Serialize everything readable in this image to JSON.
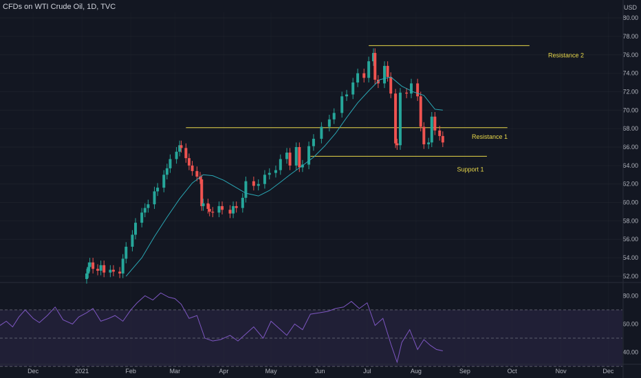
{
  "header": {
    "title": "CFDs on WTI Crude Oil, 1D, TVC",
    "currency": "USD"
  },
  "colors": {
    "background": "#131722",
    "up": "#26a69a",
    "down": "#ef5350",
    "ma": "#2aa8b5",
    "level": "#e9d84a",
    "rsi": "#7e57c2",
    "grid": "#363a45",
    "text": "#b2b5be"
  },
  "annotations": [
    {
      "label": "Resistance 2",
      "price": 77.0,
      "from": "2021-07-02",
      "to": "2021-10-12"
    },
    {
      "label": "Resistance 1",
      "price": 68.1,
      "from": "2021-03-08",
      "to": "2021-09-28"
    },
    {
      "label": "Support 1",
      "price": 65.0,
      "from": "2021-05-26",
      "to": "2021-09-15"
    }
  ],
  "chart_data": [
    {
      "type": "candlestick",
      "title": "CFDs on WTI Crude Oil, 1D, TVC",
      "y_unit": "USD",
      "y_ticks": [
        52,
        54,
        56,
        58,
        60,
        62,
        64,
        66,
        68,
        70,
        72,
        74,
        76,
        78,
        80
      ],
      "x_ticks": [
        "Dec",
        "2021",
        "Feb",
        "Mar",
        "Apr",
        "May",
        "Jun",
        "Jul",
        "Aug",
        "Sep",
        "Oct",
        "Nov",
        "Dec"
      ],
      "x_tick_dates": [
        "2020-12-01",
        "2021-01-01",
        "2021-02-01",
        "2021-03-01",
        "2021-04-01",
        "2021-05-01",
        "2021-06-01",
        "2021-07-01",
        "2021-08-01",
        "2021-09-01",
        "2021-10-01",
        "2021-11-01",
        "2021-12-01"
      ],
      "x_range": [
        "2020-11-10",
        "2021-12-10"
      ],
      "ylim": [
        51.4,
        80.6
      ],
      "series": [
        {
          "name": "Close",
          "dates": [
            "2021-01-04",
            "2021-01-05",
            "2021-01-06",
            "2021-01-08",
            "2021-01-11",
            "2021-01-13",
            "2021-01-15",
            "2021-01-19",
            "2021-01-21",
            "2021-01-25",
            "2021-01-27",
            "2021-01-29",
            "2021-02-02",
            "2021-02-04",
            "2021-02-08",
            "2021-02-10",
            "2021-02-12",
            "2021-02-16",
            "2021-02-18",
            "2021-02-22",
            "2021-02-24",
            "2021-02-26",
            "2021-03-02",
            "2021-03-04",
            "2021-03-05",
            "2021-03-08",
            "2021-03-10",
            "2021-03-12",
            "2021-03-15",
            "2021-03-17",
            "2021-03-18",
            "2021-03-19",
            "2021-03-22",
            "2021-03-23",
            "2021-03-25",
            "2021-03-29",
            "2021-03-31",
            "2021-04-05",
            "2021-04-07",
            "2021-04-09",
            "2021-04-13",
            "2021-04-15",
            "2021-04-20",
            "2021-04-23",
            "2021-04-27",
            "2021-04-30",
            "2021-05-04",
            "2021-05-07",
            "2021-05-11",
            "2021-05-13",
            "2021-05-17",
            "2021-05-19",
            "2021-05-21",
            "2021-05-25",
            "2021-05-28",
            "2021-06-02",
            "2021-06-07",
            "2021-06-10",
            "2021-06-15",
            "2021-06-18",
            "2021-06-22",
            "2021-06-25",
            "2021-06-29",
            "2021-07-02",
            "2021-07-05",
            "2021-07-06",
            "2021-07-08",
            "2021-07-12",
            "2021-07-14",
            "2021-07-16",
            "2021-07-19",
            "2021-07-20",
            "2021-07-22",
            "2021-07-26",
            "2021-07-29",
            "2021-08-02",
            "2021-08-04",
            "2021-08-06",
            "2021-08-09",
            "2021-08-11",
            "2021-08-13",
            "2021-08-16",
            "2021-08-18"
          ],
          "values": [
            52.3,
            53.0,
            53.5,
            52.8,
            52.6,
            53.2,
            52.4,
            52.7,
            52.5,
            52.3,
            53.9,
            55.2,
            56.5,
            57.8,
            58.9,
            59.4,
            59.8,
            61.2,
            61.6,
            63.0,
            63.7,
            64.7,
            65.5,
            66.2,
            65.9,
            64.8,
            64.0,
            63.4,
            62.8,
            62.5,
            59.6,
            59.9,
            59.3,
            59.0,
            58.9,
            59.6,
            59.2,
            58.8,
            59.6,
            59.4,
            60.5,
            62.3,
            61.8,
            62.0,
            63.0,
            63.2,
            63.5,
            64.7,
            65.4,
            64.0,
            66.0,
            63.8,
            64.1,
            66.1,
            66.9,
            68.2,
            69.0,
            69.7,
            71.5,
            71.7,
            73.0,
            74.0,
            73.5,
            75.3,
            76.2,
            73.3,
            72.9,
            74.8,
            73.6,
            71.8,
            66.4,
            66.2,
            71.9,
            71.8,
            72.9,
            71.5,
            68.2,
            66.3,
            66.5,
            69.3,
            67.8,
            67.2,
            66.5
          ]
        },
        {
          "name": "MA",
          "dates": [
            "2021-01-29",
            "2021-02-08",
            "2021-02-16",
            "2021-02-24",
            "2021-03-04",
            "2021-03-12",
            "2021-03-19",
            "2021-03-25",
            "2021-04-01",
            "2021-04-09",
            "2021-04-15",
            "2021-04-23",
            "2021-04-30",
            "2021-05-07",
            "2021-05-13",
            "2021-05-21",
            "2021-05-28",
            "2021-06-04",
            "2021-06-11",
            "2021-06-18",
            "2021-06-25",
            "2021-07-02",
            "2021-07-09",
            "2021-07-16",
            "2021-07-23",
            "2021-07-30",
            "2021-08-06",
            "2021-08-13",
            "2021-08-18"
          ],
          "values": [
            52.0,
            54.0,
            56.3,
            58.4,
            60.4,
            62.1,
            63.0,
            62.9,
            62.4,
            61.6,
            61.0,
            60.7,
            61.3,
            62.2,
            63.0,
            64.0,
            64.9,
            66.1,
            67.5,
            69.2,
            70.8,
            72.1,
            73.3,
            73.6,
            72.6,
            72.0,
            71.6,
            70.1,
            70.0
          ]
        }
      ]
    },
    {
      "type": "line",
      "title": "",
      "y_ticks": [
        40,
        60,
        80
      ],
      "ylim": [
        33,
        86
      ],
      "bands": [
        70,
        50,
        30
      ],
      "series": [
        {
          "name": "RSI",
          "dates": [
            "2020-11-10",
            "2020-11-14",
            "2020-11-18",
            "2020-11-22",
            "2020-11-26",
            "2020-12-01",
            "2020-12-05",
            "2020-12-10",
            "2020-12-15",
            "2020-12-20",
            "2020-12-26",
            "2020-12-30",
            "2021-01-04",
            "2021-01-08",
            "2021-01-13",
            "2021-01-18",
            "2021-01-22",
            "2021-01-27",
            "2021-02-01",
            "2021-02-05",
            "2021-02-10",
            "2021-02-15",
            "2021-02-20",
            "2021-02-25",
            "2021-03-01",
            "2021-03-05",
            "2021-03-10",
            "2021-03-15",
            "2021-03-20",
            "2021-03-25",
            "2021-03-30",
            "2021-04-05",
            "2021-04-10",
            "2021-04-15",
            "2021-04-20",
            "2021-04-26",
            "2021-05-01",
            "2021-05-06",
            "2021-05-11",
            "2021-05-16",
            "2021-05-21",
            "2021-05-26",
            "2021-06-01",
            "2021-06-06",
            "2021-06-11",
            "2021-06-16",
            "2021-06-21",
            "2021-06-26",
            "2021-07-01",
            "2021-07-06",
            "2021-07-11",
            "2021-07-16",
            "2021-07-20",
            "2021-07-23",
            "2021-07-28",
            "2021-08-02",
            "2021-08-06",
            "2021-08-10",
            "2021-08-14",
            "2021-08-18"
          ],
          "values": [
            59,
            62,
            58,
            65,
            70,
            64,
            61,
            66,
            72,
            63,
            60,
            65,
            68,
            71,
            62,
            64,
            66,
            62,
            70,
            75,
            80,
            77,
            82,
            79,
            78,
            74,
            64,
            66,
            50,
            48,
            49,
            52,
            48,
            53,
            58,
            50,
            62,
            57,
            52,
            60,
            56,
            67,
            68,
            69,
            71,
            72,
            76,
            71,
            75,
            59,
            64,
            46,
            33,
            47,
            56,
            42,
            49,
            45,
            42,
            41
          ]
        }
      ]
    }
  ]
}
